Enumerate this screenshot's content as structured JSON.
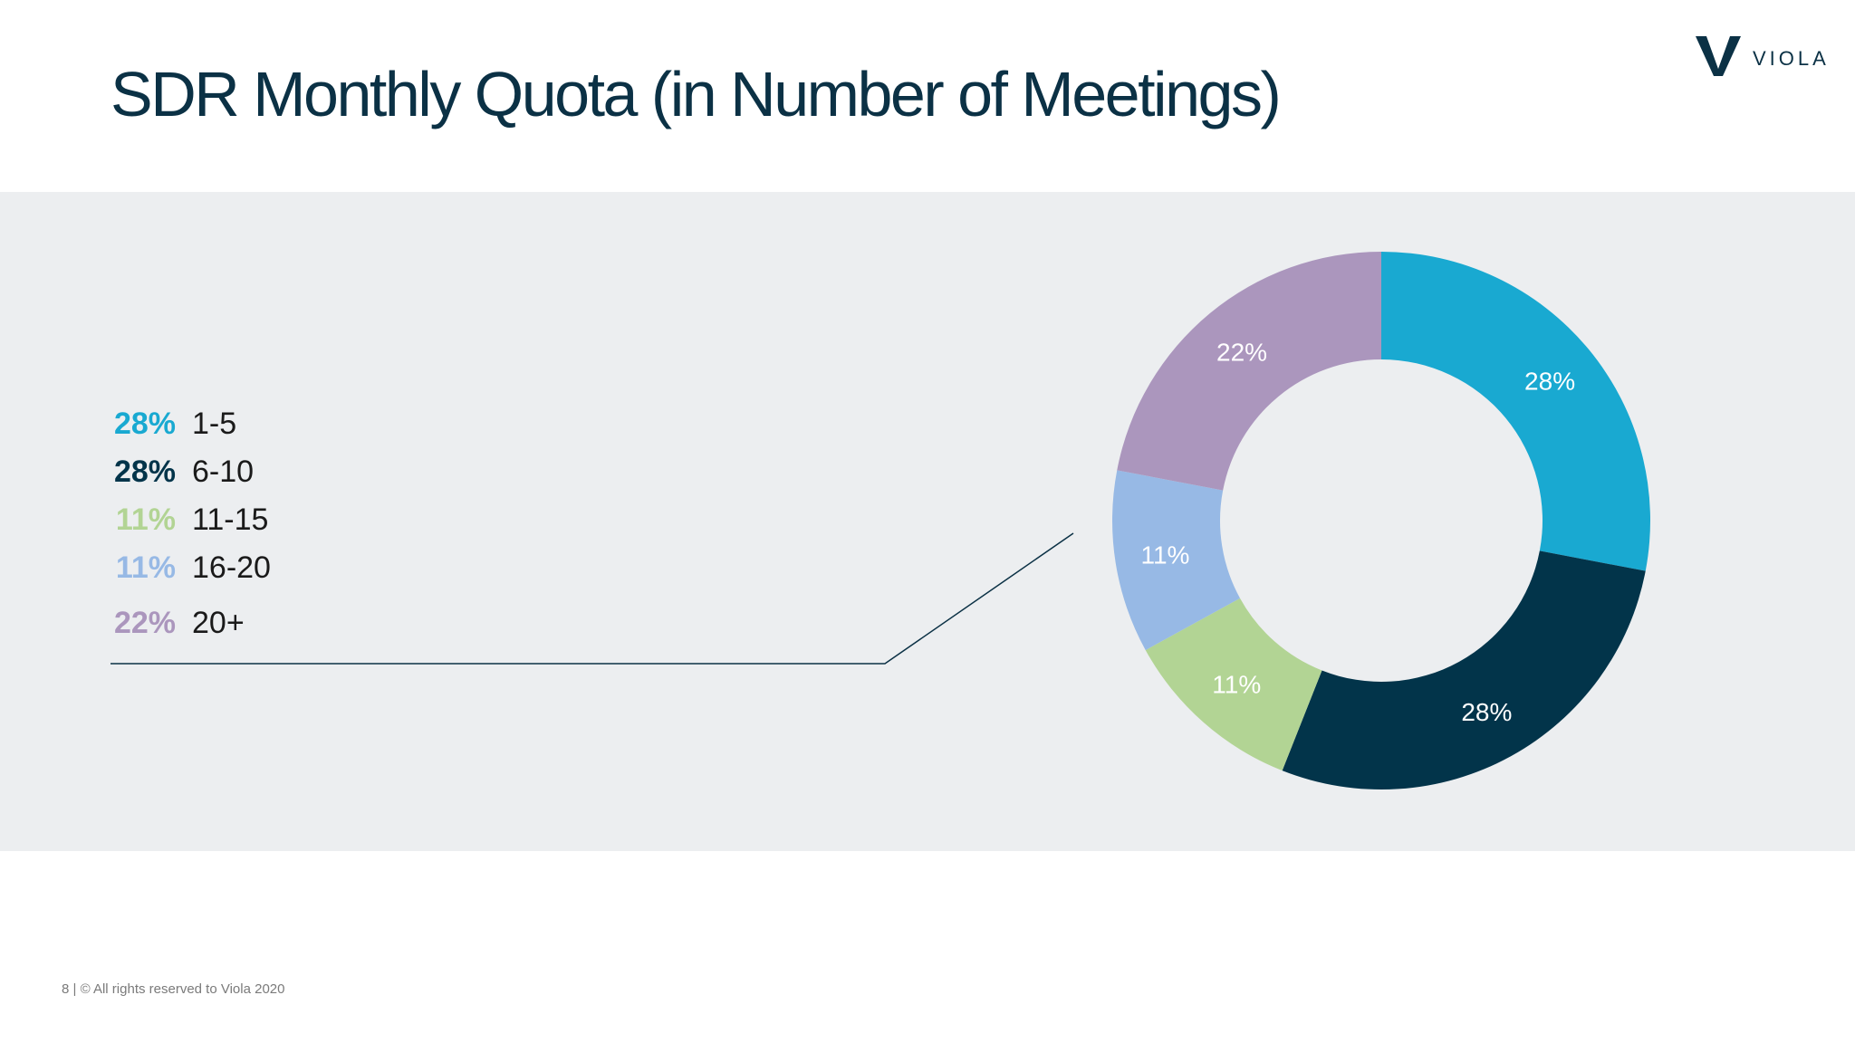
{
  "slide": {
    "title": "SDR Monthly Quota (in Number of Meetings)",
    "footer": "8  | © All rights reserved to Viola 2020"
  },
  "logo": {
    "text": "VIOLA",
    "icon": "viola-v-logo-icon",
    "color": "#0b3145"
  },
  "colors": {
    "title": "#0b3145",
    "band": "#eceef0",
    "connector_line": "#0b3145"
  },
  "chart_data": {
    "type": "pie",
    "subtype": "donut",
    "title": "",
    "categories": [
      "1-5",
      "6-10",
      "11-15",
      "16-20",
      "20+"
    ],
    "values": [
      28,
      28,
      11,
      11,
      22
    ],
    "data_labels": [
      "28%",
      "28%",
      "11%",
      "11%",
      "22%"
    ],
    "legend_labels": [
      "28%",
      "28%",
      "11%",
      "11%",
      "22%"
    ],
    "colors": [
      "#19a9d1",
      "#02344a",
      "#b2d494",
      "#97b9e5",
      "#ab96bd"
    ],
    "start_angle_deg": 0,
    "direction": "clockwise",
    "legend_placement": "left"
  }
}
